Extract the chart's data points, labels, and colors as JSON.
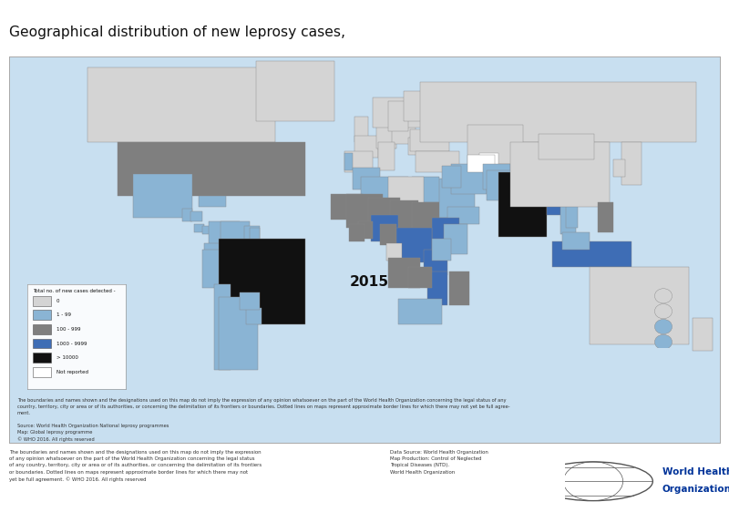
{
  "title_normal": "Geographical distribution of new leprosy cases, ",
  "title_bold": "2015",
  "legend_title": "Total no. of new cases detected -",
  "legend_items": [
    {
      "label": "0",
      "color": "#d4d4d4"
    },
    {
      "label": "1 - 99",
      "color": "#8ab4d4"
    },
    {
      "label": "100 - 999",
      "color": "#7f7f7f"
    },
    {
      "label": "1000 - 9999",
      "color": "#3e6db5"
    },
    {
      "label": "> 10000",
      "color": "#111111"
    },
    {
      "label": "Not reported",
      "color": "#ffffff"
    }
  ],
  "ocean_color": "#c8dff0",
  "figure_bg": "#ffffff",
  "map_border_color": "#aaaaaa",
  "country_colors": {
    "IND": "#111111",
    "BRA": "#111111",
    "IDN": "#3e6db5",
    "ETH": "#3e6db5",
    "COD": "#3e6db5",
    "NGA": "#3e6db5",
    "MOZ": "#3e6db5",
    "TZA": "#3e6db5",
    "MMR": "#3e6db5",
    "BGD": "#3e6db5",
    "NPL": "#3e6db5",
    "AGO": "#7f7f7f",
    "CMR": "#7f7f7f",
    "COG": "#7f7f7f",
    "MDG": "#7f7f7f",
    "PHL": "#7f7f7f",
    "CAF": "#7f7f7f",
    "ZMB": "#7f7f7f",
    "SSD": "#7f7f7f",
    "SDN": "#7f7f7f",
    "GHA": "#7f7f7f",
    "CIV": "#7f7f7f",
    "LBR": "#7f7f7f",
    "GIN": "#7f7f7f",
    "MLI": "#7f7f7f",
    "BFA": "#7f7f7f",
    "TGO": "#7f7f7f",
    "BEN": "#7f7f7f",
    "NER": "#7f7f7f",
    "TCD": "#7f7f7f",
    "GNB": "#7f7f7f",
    "GMB": "#7f7f7f",
    "MRT": "#7f7f7f",
    "COM": "#7f7f7f",
    "USA": "#7f7f7f",
    "MEX": "#8ab4d4",
    "COL": "#8ab4d4",
    "PRY": "#8ab4d4",
    "VEN": "#8ab4d4",
    "BOL": "#8ab4d4",
    "PER": "#8ab4d4",
    "ARG": "#8ab4d4",
    "CHL": "#8ab4d4",
    "URY": "#8ab4d4",
    "GTM": "#8ab4d4",
    "HND": "#8ab4d4",
    "NIC": "#8ab4d4",
    "SLV": "#8ab4d4",
    "CRI": "#8ab4d4",
    "PAN": "#8ab4d4",
    "CUB": "#8ab4d4",
    "HTI": "#8ab4d4",
    "DOM": "#8ab4d4",
    "JAM": "#8ab4d4",
    "TTO": "#8ab4d4",
    "GUY": "#8ab4d4",
    "SUR": "#8ab4d4",
    "GUF": "#8ab4d4",
    "ECU": "#8ab4d4",
    "MAR": "#8ab4d4",
    "DZA": "#8ab4d4",
    "TUN": "#8ab4d4",
    "EGY": "#8ab4d4",
    "KEN": "#8ab4d4",
    "UGA": "#8ab4d4",
    "RWA": "#8ab4d4",
    "BDI": "#8ab4d4",
    "ZWE": "#8ab4d4",
    "MWI": "#8ab4d4",
    "ZAF": "#8ab4d4",
    "NAM": "#8ab4d4",
    "BWA": "#8ab4d4",
    "SOM": "#8ab4d4",
    "ERI": "#8ab4d4",
    "DJI": "#8ab4d4",
    "YEM": "#8ab4d4",
    "OMN": "#8ab4d4",
    "ARE": "#8ab4d4",
    "QAT": "#8ab4d4",
    "BHR": "#8ab4d4",
    "KWT": "#8ab4d4",
    "IRQ": "#8ab4d4",
    "SAU": "#8ab4d4",
    "IRN": "#8ab4d4",
    "AFG": "#8ab4d4",
    "PAK": "#8ab4d4",
    "LKA": "#8ab4d4",
    "VNM": "#8ab4d4",
    "THA": "#8ab4d4",
    "KHM": "#8ab4d4",
    "LAO": "#8ab4d4",
    "PNG": "#8ab4d4",
    "MYS": "#8ab4d4",
    "PRT": "#8ab4d4",
    "SEN": "#8ab4d4",
    "SLE": "#8ab4d4",
    "TLS": "#8ab4d4",
    "SLB": "#8ab4d4",
    "FJI": "#8ab4d4",
    "VUT": "#8ab4d4",
    "WSM": "#8ab4d4",
    "TON": "#8ab4d4",
    "MHL": "#8ab4d4",
    "FSM": "#8ab4d4",
    "RUS": "#d4d4d4",
    "CAN": "#d4d4d4",
    "GRL": "#d4d4d4",
    "ISL": "#d4d4d4",
    "NOR": "#d4d4d4",
    "SWE": "#d4d4d4",
    "FIN": "#d4d4d4",
    "EST": "#d4d4d4",
    "LVA": "#d4d4d4",
    "LTU": "#d4d4d4",
    "BLR": "#d4d4d4",
    "UKR": "#d4d4d4",
    "MDA": "#d4d4d4",
    "ROU": "#d4d4d4",
    "BGR": "#d4d4d4",
    "SRB": "#d4d4d4",
    "HRV": "#d4d4d4",
    "BIH": "#d4d4d4",
    "SVN": "#d4d4d4",
    "SVK": "#d4d4d4",
    "CZE": "#d4d4d4",
    "HUN": "#d4d4d4",
    "AUT": "#d4d4d4",
    "CHE": "#d4d4d4",
    "DEU": "#d4d4d4",
    "POL": "#d4d4d4",
    "FRA": "#d4d4d4",
    "BEL": "#d4d4d4",
    "NLD": "#d4d4d4",
    "LUX": "#d4d4d4",
    "DNK": "#d4d4d4",
    "GBR": "#d4d4d4",
    "IRL": "#d4d4d4",
    "ESP": "#d4d4d4",
    "ITA": "#d4d4d4",
    "GRC": "#d4d4d4",
    "TUR": "#d4d4d4",
    "GEO": "#d4d4d4",
    "ARM": "#d4d4d4",
    "AZE": "#d4d4d4",
    "KAZ": "#d4d4d4",
    "MNG": "#d4d4d4",
    "JPN": "#d4d4d4",
    "KOR": "#d4d4d4",
    "PRK": "#d4d4d4",
    "CHN": "#d4d4d4",
    "AUS": "#d4d4d4",
    "NZL": "#d4d4d4",
    "ALB": "#d4d4d4",
    "MKD": "#d4d4d4",
    "MNE": "#d4d4d4",
    "CYP": "#d4d4d4",
    "MLT": "#d4d4d4",
    "LBY": "#d4d4d4",
    "SYR": "#d4d4d4",
    "LBN": "#d4d4d4",
    "JOR": "#d4d4d4",
    "ISR": "#d4d4d4",
    "SGP": "#d4d4d4",
    "KGZ": "#ffffff",
    "TJK": "#ffffff",
    "TKM": "#ffffff",
    "UZB": "#ffffff"
  },
  "default_color": "#d4d4d4",
  "note_inside": "The boundaries and names shown and the designations used on this map do not imply the expression of any opinion whatsoever on the part of the World Health Organization concerning the legal status of any\ncountry, territory, city or area or of its authorities, or concerning the delimitation of its frontiers or boundaries. Dotted lines on maps represent approximate border lines for which there may not yet be full agree-\nment.\n\nSource: World Health Organization National leprosy programmes\nMap: Global leprosy programme\n© WHO 2016. All rights reserved",
  "footer_left": "The boundaries and names shown and the designations used on this map do not imply the expression\nof any opinion whatsoever on the part of the World Health Organization concerning the legal status\nof any country, territory, city or area or of its authorities, or concerning the delimitation of its frontiers\nor boundaries. Dotted lines on maps represent approximate border lines for which there may not\nyet be full agreement. © WHO 2016. All rights reserved",
  "footer_right": "Data Source: World Health Organization\nMap Production: Control of Neglected\nTropical Diseases (NTD).\nWorld Health Organization"
}
